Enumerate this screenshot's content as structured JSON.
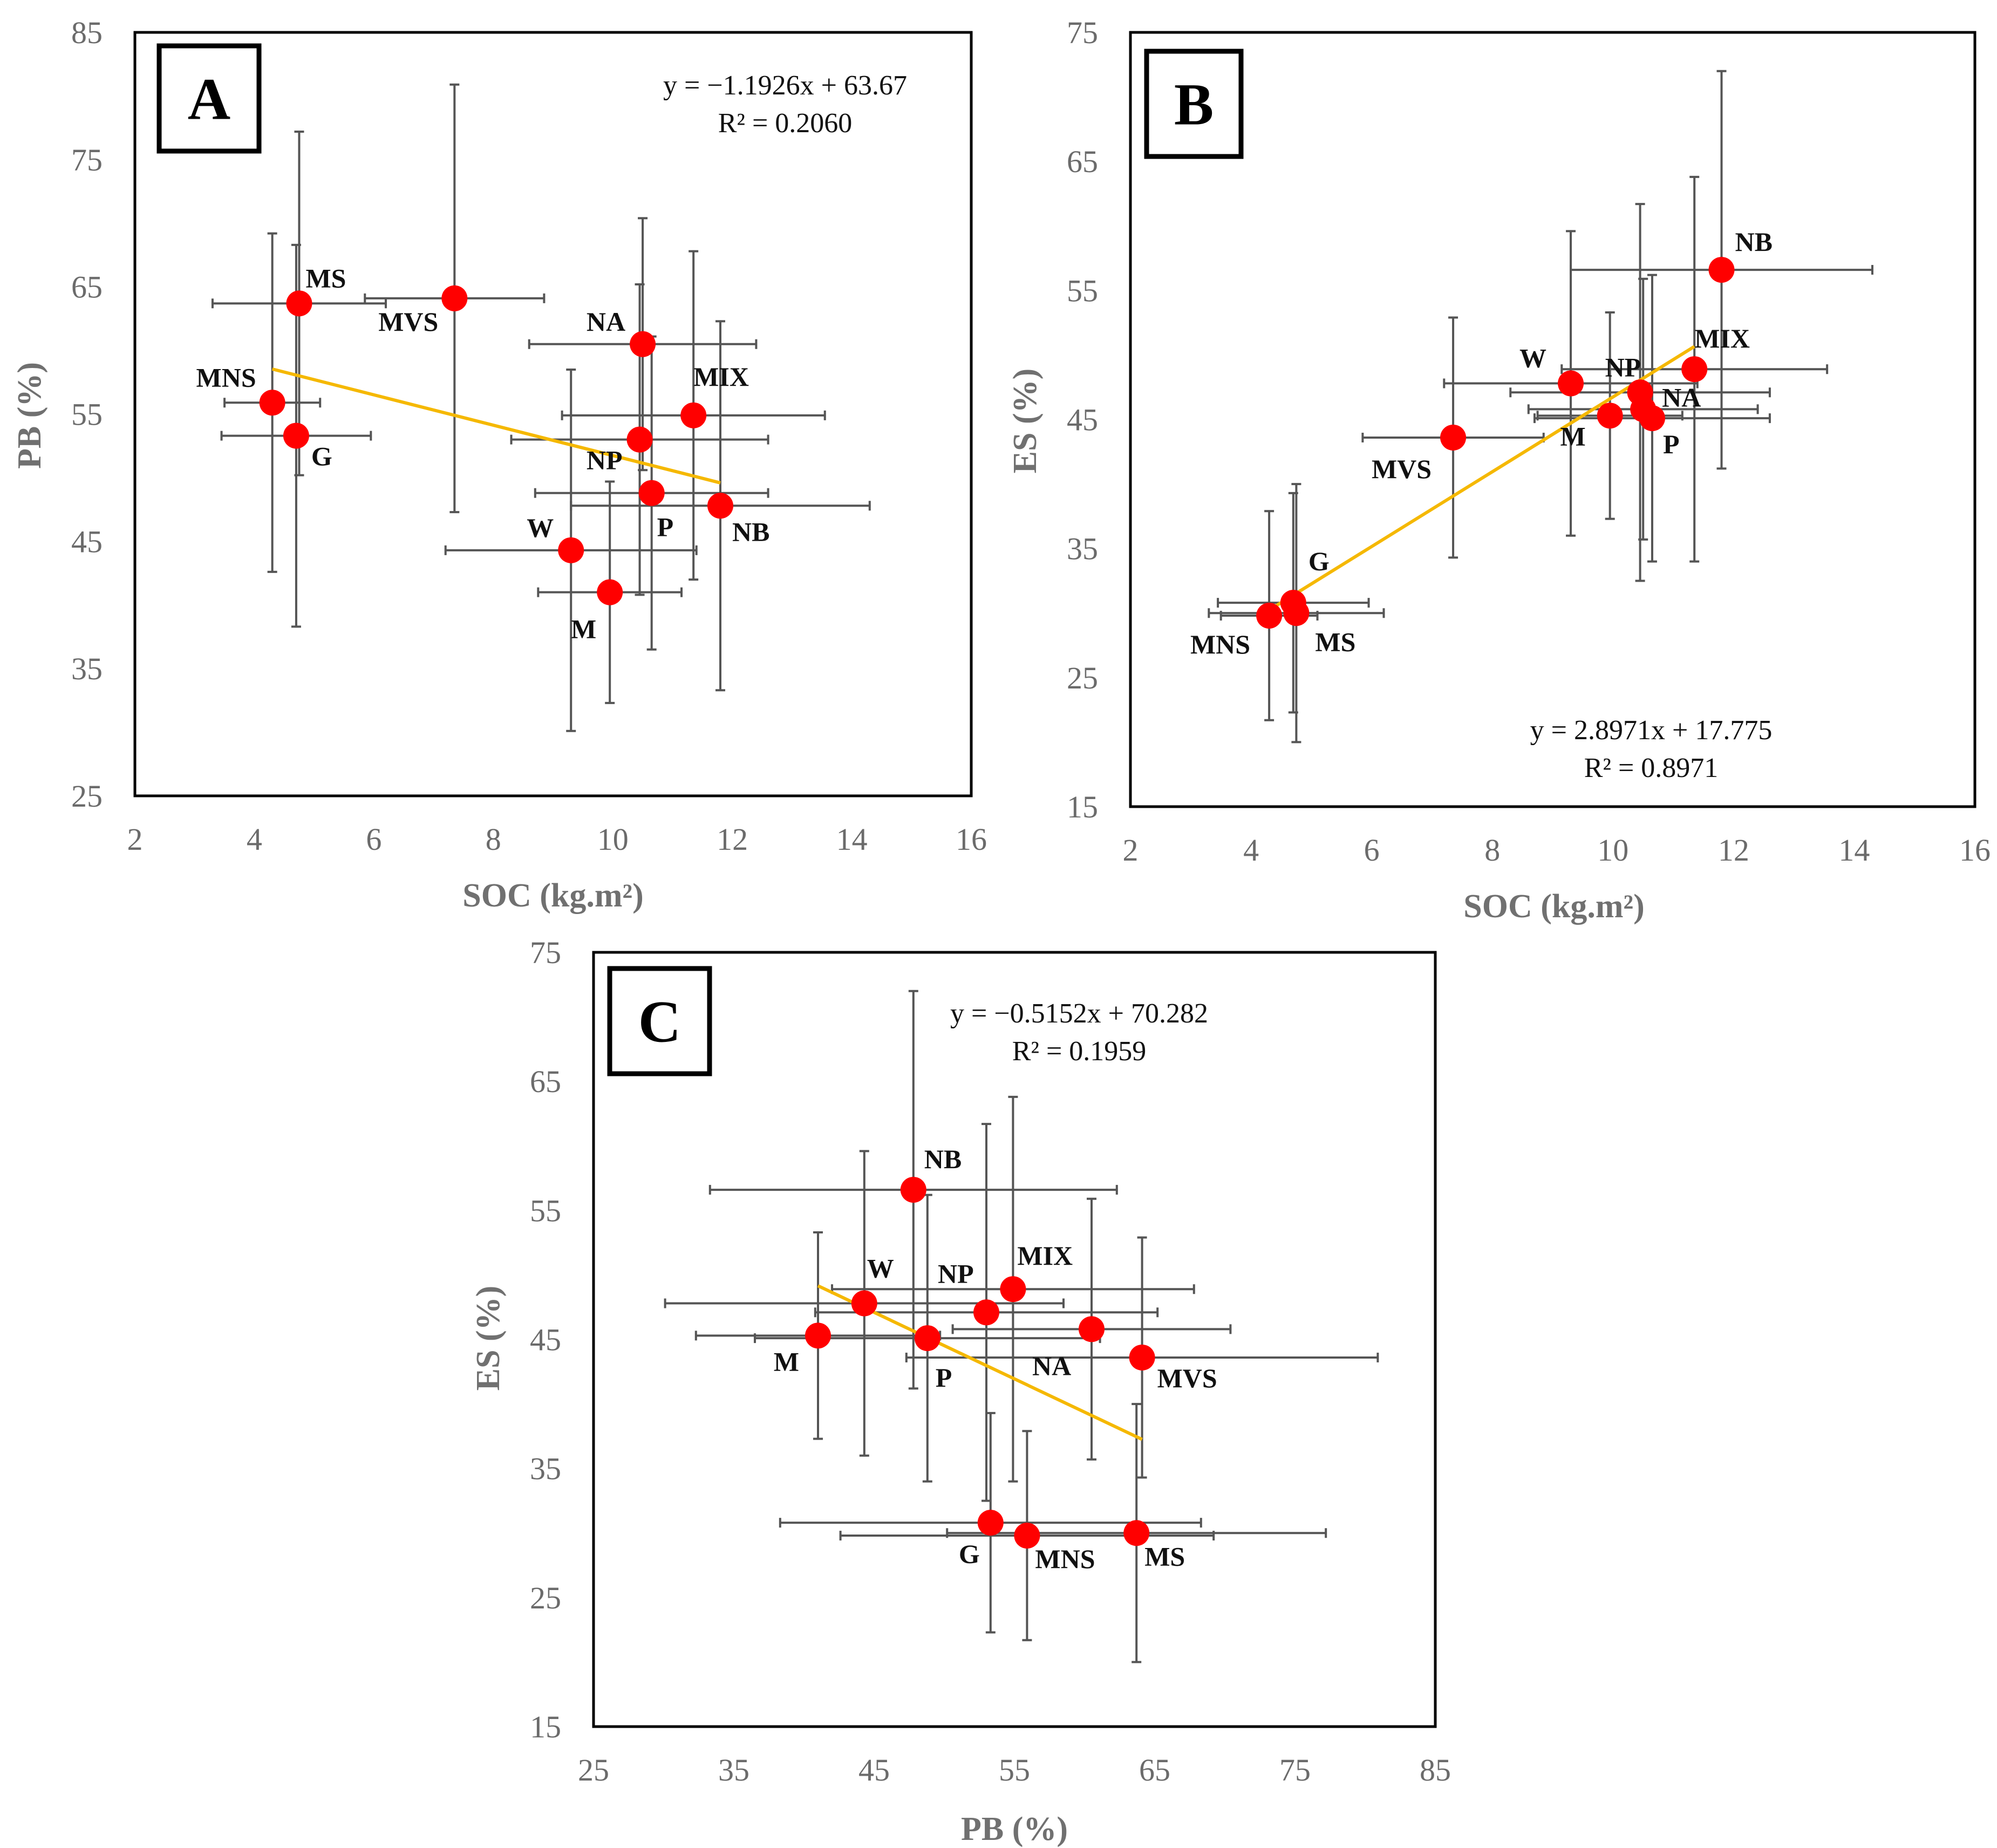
{
  "colors": {
    "point": "#ff0000",
    "trend": "#f5b800",
    "errorbar": "#555555",
    "frame": "#000000"
  },
  "chart_data": [
    {
      "type": "scatter",
      "panel": "A",
      "xlabel": "SOC (kg.m²)",
      "ylabel": "PB (%)",
      "xlim": [
        2,
        16
      ],
      "xticks": [
        2,
        4,
        6,
        8,
        10,
        12,
        14,
        16
      ],
      "ylim": [
        25,
        85
      ],
      "yticks": [
        25,
        35,
        45,
        55,
        65,
        75,
        85
      ],
      "equation": "y = −1.1926x + 63.67",
      "r2": "R² = 0.2060",
      "trend": {
        "slope": -1.1926,
        "intercept": 63.67,
        "x_range": [
          4.3,
          11.8
        ]
      },
      "points": [
        {
          "label": "MS",
          "x": 4.75,
          "y": 63.7,
          "xerr": 1.45,
          "yerr": 13.5
        },
        {
          "label": "MVS",
          "x": 7.35,
          "y": 64.1,
          "xerr": 1.5,
          "yerr": 16.8
        },
        {
          "label": "MNS",
          "x": 4.3,
          "y": 55.9,
          "xerr": 0.8,
          "yerr": 13.3
        },
        {
          "label": "G",
          "x": 4.7,
          "y": 53.3,
          "xerr": 1.25,
          "yerr": 15.0
        },
        {
          "label": "NA",
          "x": 10.5,
          "y": 60.5,
          "xerr": 1.9,
          "yerr": 9.9
        },
        {
          "label": "MIX",
          "x": 11.35,
          "y": 54.9,
          "xerr": 2.2,
          "yerr": 12.9
        },
        {
          "label": "NP",
          "x": 10.45,
          "y": 53.0,
          "xerr": 2.15,
          "yerr": 12.2
        },
        {
          "label": "P",
          "x": 10.65,
          "y": 48.8,
          "xerr": 1.95,
          "yerr": 12.3
        },
        {
          "label": "NB",
          "x": 11.8,
          "y": 47.8,
          "xerr": 2.5,
          "yerr": 14.5
        },
        {
          "label": "W",
          "x": 9.3,
          "y": 44.3,
          "xerr": 2.1,
          "yerr": 14.2
        },
        {
          "label": "M",
          "x": 9.95,
          "y": 41.0,
          "xerr": 1.2,
          "yerr": 8.7
        }
      ]
    },
    {
      "type": "scatter",
      "panel": "B",
      "xlabel": "SOC (kg.m²)",
      "ylabel": "ES (%)",
      "xlim": [
        2,
        16
      ],
      "xticks": [
        2,
        4,
        6,
        8,
        10,
        12,
        14,
        16
      ],
      "ylim": [
        15,
        75
      ],
      "yticks": [
        15,
        25,
        35,
        45,
        55,
        65,
        75
      ],
      "equation": "y = 2.8971x + 17.775",
      "r2": "R² = 0.8971",
      "trend": {
        "slope": 2.8971,
        "intercept": 17.775,
        "x_range": [
          4.3,
          11.35
        ]
      },
      "points": [
        {
          "label": "NB",
          "x": 11.8,
          "y": 56.6,
          "xerr": 2.5,
          "yerr": 15.4
        },
        {
          "label": "MIX",
          "x": 11.35,
          "y": 48.9,
          "xerr": 2.2,
          "yerr": 14.9
        },
        {
          "label": "W",
          "x": 9.3,
          "y": 47.8,
          "xerr": 2.1,
          "yerr": 11.8
        },
        {
          "label": "NP",
          "x": 10.45,
          "y": 47.1,
          "xerr": 2.15,
          "yerr": 14.6
        },
        {
          "label": "NA",
          "x": 10.5,
          "y": 45.8,
          "xerr": 1.9,
          "yerr": 10.1
        },
        {
          "label": "M",
          "x": 9.95,
          "y": 45.3,
          "xerr": 1.2,
          "yerr": 8.0
        },
        {
          "label": "P",
          "x": 10.65,
          "y": 45.1,
          "xerr": 1.95,
          "yerr": 11.1
        },
        {
          "label": "MVS",
          "x": 7.35,
          "y": 43.6,
          "xerr": 1.5,
          "yerr": 9.3
        },
        {
          "label": "G",
          "x": 4.7,
          "y": 30.8,
          "xerr": 1.25,
          "yerr": 8.5
        },
        {
          "label": "MS",
          "x": 4.75,
          "y": 30.0,
          "xerr": 1.45,
          "yerr": 10.0
        },
        {
          "label": "MNS",
          "x": 4.3,
          "y": 29.8,
          "xerr": 0.8,
          "yerr": 8.1
        }
      ]
    },
    {
      "type": "scatter",
      "panel": "C",
      "xlabel": "PB (%)",
      "ylabel": "ES (%)",
      "xlim": [
        25,
        85
      ],
      "xticks": [
        25,
        35,
        45,
        55,
        65,
        75,
        85
      ],
      "ylim": [
        15,
        75
      ],
      "yticks": [
        15,
        25,
        35,
        45,
        55,
        65,
        75
      ],
      "equation": "y = −0.5152x + 70.282",
      "r2": "R² = 0.1959",
      "trend": {
        "slope": -0.5152,
        "intercept": 70.282,
        "x_range": [
          41.0,
          64.1
        ]
      },
      "points": [
        {
          "label": "NB",
          "x": 47.8,
          "y": 56.6,
          "xerr": 14.5,
          "yerr": 15.4
        },
        {
          "label": "W",
          "x": 44.3,
          "y": 47.8,
          "xerr": 14.2,
          "yerr": 11.8
        },
        {
          "label": "NP",
          "x": 53.0,
          "y": 47.1,
          "xerr": 12.2,
          "yerr": 14.6
        },
        {
          "label": "MIX",
          "x": 54.9,
          "y": 48.9,
          "xerr": 12.9,
          "yerr": 14.9
        },
        {
          "label": "M",
          "x": 41.0,
          "y": 45.3,
          "xerr": 8.7,
          "yerr": 8.0
        },
        {
          "label": "P",
          "x": 48.8,
          "y": 45.1,
          "xerr": 12.3,
          "yerr": 11.1
        },
        {
          "label": "NA",
          "x": 60.5,
          "y": 45.8,
          "xerr": 9.9,
          "yerr": 10.1
        },
        {
          "label": "MVS",
          "x": 64.1,
          "y": 43.6,
          "xerr": 16.8,
          "yerr": 9.3
        },
        {
          "label": "G",
          "x": 53.3,
          "y": 30.8,
          "xerr": 15.0,
          "yerr": 8.5
        },
        {
          "label": "MNS",
          "x": 55.9,
          "y": 29.8,
          "xerr": 13.3,
          "yerr": 8.1
        },
        {
          "label": "MS",
          "x": 63.7,
          "y": 30.0,
          "xerr": 13.5,
          "yerr": 10.0
        }
      ]
    }
  ]
}
